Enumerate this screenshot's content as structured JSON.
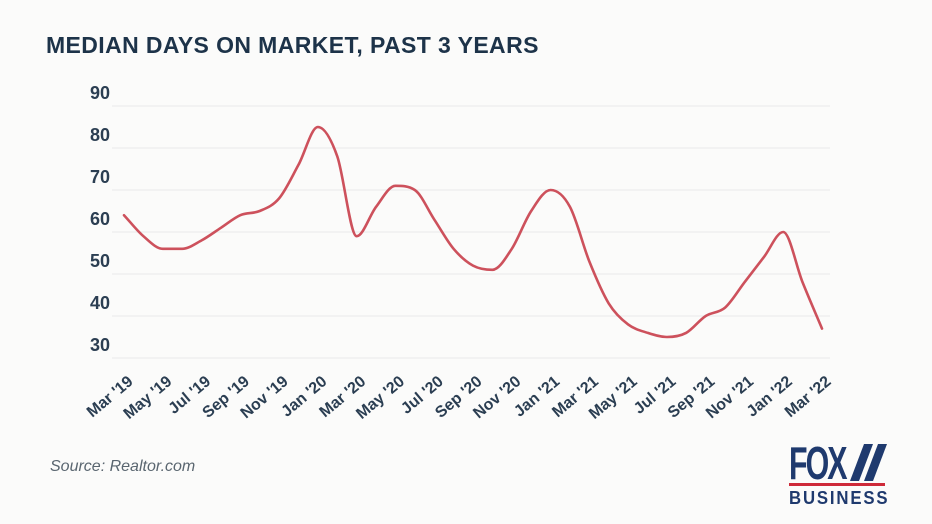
{
  "header": {
    "title": "MEDIAN DAYS ON MARKET, PAST 3 YEARS"
  },
  "source": {
    "label": "Source: Realtor.com"
  },
  "logo": {
    "fox": "FOX",
    "business": "BUSINESS",
    "searchlight_icon": "fox-searchlight-slashes"
  },
  "colors": {
    "line": "#cd515c",
    "title": "#1d3349",
    "axis_label": "#2b3e52",
    "gridline": "#e9e9e9",
    "background": "#fbfbfa",
    "source_text": "#5a6670",
    "logo_navy": "#1f3a6e",
    "logo_red": "#ce2a39"
  },
  "chart_data": {
    "type": "line",
    "title": "MEDIAN DAYS ON MARKET, PAST 3 YEARS",
    "xlabel": "",
    "ylabel": "",
    "ylim": [
      30,
      90
    ],
    "yticks": [
      90,
      80,
      70,
      60,
      50,
      40,
      30
    ],
    "grid": "horizontal",
    "legend": "none",
    "x_tick_labels": [
      "Mar '19",
      "May '19",
      "Jul '19",
      "Sep '19",
      "Nov '19",
      "Jan '20",
      "Mar '20",
      "May '20",
      "Jul '20",
      "Sep '20",
      "Nov '20",
      "Jan '21",
      "Mar '21",
      "May '21",
      "Jul '21",
      "Sep '21",
      "Nov '21",
      "Jan '22",
      "Mar '22"
    ],
    "x_labels_all": [
      "Mar '19",
      "Apr '19",
      "May '19",
      "Jun '19",
      "Jul '19",
      "Aug '19",
      "Sep '19",
      "Oct '19",
      "Nov '19",
      "Dec '19",
      "Jan '20",
      "Feb '20",
      "Mar '20",
      "Apr '20",
      "May '20",
      "Jun '20",
      "Jul '20",
      "Aug '20",
      "Sep '20",
      "Oct '20",
      "Nov '20",
      "Dec '20",
      "Jan '21",
      "Feb '21",
      "Mar '21",
      "Apr '21",
      "May '21",
      "Jun '21",
      "Jul '21",
      "Aug '21",
      "Sep '21",
      "Oct '21",
      "Nov '21",
      "Dec '21",
      "Jan '22",
      "Feb '22",
      "Mar '22"
    ],
    "series": [
      {
        "name": "Median days on market",
        "values": [
          64,
          59,
          56,
          56,
          58,
          61,
          64,
          65,
          68,
          76,
          85,
          78,
          59,
          66,
          71,
          70,
          63,
          56,
          52,
          51,
          56,
          65,
          70,
          66,
          53,
          43,
          38,
          36,
          35,
          36,
          40,
          42,
          48,
          54,
          60,
          48,
          37
        ]
      }
    ]
  }
}
